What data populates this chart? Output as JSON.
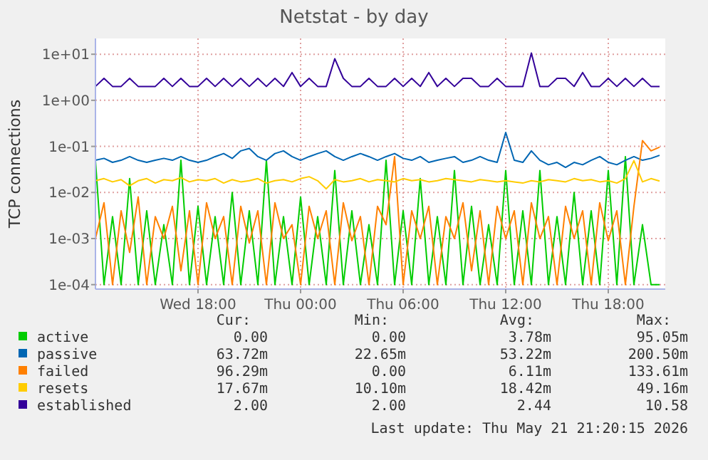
{
  "chart_data": {
    "type": "line",
    "title": "Netstat - by day",
    "ylabel": "TCP connections",
    "log": "y",
    "grid": true,
    "legend": "bottom",
    "line_style": "solid",
    "xlim": [
      "2026-05-20T12:00",
      "2026-05-21T21:20"
    ],
    "xticks": [
      {
        "value": "2026-05-20T18:00",
        "label": "Wed 18:00"
      },
      {
        "value": "2026-05-21T00:00",
        "label": "Thu 00:00"
      },
      {
        "value": "2026-05-21T06:00",
        "label": "Thu 06:00"
      },
      {
        "value": "2026-05-21T12:00",
        "label": "Thu 12:00"
      },
      {
        "value": "2026-05-21T18:00",
        "label": "Thu 18:00"
      }
    ],
    "ylim": [
      8e-05,
      22
    ],
    "yticks": [
      {
        "value": 0.0001,
        "label": "1e-04"
      },
      {
        "value": 0.001,
        "label": "1e-03"
      },
      {
        "value": 0.01,
        "label": "1e-02"
      },
      {
        "value": 0.1,
        "label": "1e-01"
      },
      {
        "value": 1,
        "label": "1e+00"
      },
      {
        "value": 10,
        "label": "1e+01"
      }
    ],
    "x": [
      "2026-05-20T12:00",
      "2026-05-20T12:30",
      "2026-05-20T13:00",
      "2026-05-20T13:30",
      "2026-05-20T14:00",
      "2026-05-20T14:30",
      "2026-05-20T15:00",
      "2026-05-20T15:30",
      "2026-05-20T16:00",
      "2026-05-20T16:30",
      "2026-05-20T17:00",
      "2026-05-20T17:30",
      "2026-05-20T18:00",
      "2026-05-20T18:30",
      "2026-05-20T19:00",
      "2026-05-20T19:30",
      "2026-05-20T20:00",
      "2026-05-20T20:30",
      "2026-05-20T21:00",
      "2026-05-20T21:30",
      "2026-05-20T22:00",
      "2026-05-20T22:30",
      "2026-05-20T23:00",
      "2026-05-20T23:30",
      "2026-05-21T00:00",
      "2026-05-21T00:30",
      "2026-05-21T01:00",
      "2026-05-21T01:30",
      "2026-05-21T02:00",
      "2026-05-21T02:30",
      "2026-05-21T03:00",
      "2026-05-21T03:30",
      "2026-05-21T04:00",
      "2026-05-21T04:30",
      "2026-05-21T05:00",
      "2026-05-21T05:30",
      "2026-05-21T06:00",
      "2026-05-21T06:30",
      "2026-05-21T07:00",
      "2026-05-21T07:30",
      "2026-05-21T08:00",
      "2026-05-21T08:30",
      "2026-05-21T09:00",
      "2026-05-21T09:30",
      "2026-05-21T10:00",
      "2026-05-21T10:30",
      "2026-05-21T11:00",
      "2026-05-21T11:30",
      "2026-05-21T12:00",
      "2026-05-21T12:30",
      "2026-05-21T13:00",
      "2026-05-21T13:30",
      "2026-05-21T14:00",
      "2026-05-21T14:30",
      "2026-05-21T15:00",
      "2026-05-21T15:30",
      "2026-05-21T16:00",
      "2026-05-21T16:30",
      "2026-05-21T17:00",
      "2026-05-21T17:30",
      "2026-05-21T18:00",
      "2026-05-21T18:30",
      "2026-05-21T19:00",
      "2026-05-21T19:30",
      "2026-05-21T20:00",
      "2026-05-21T20:30",
      "2026-05-21T21:00"
    ],
    "series": [
      {
        "name": "active",
        "color": "#00cc00",
        "values": [
          0.05,
          0.0001,
          0.003,
          0.0001,
          0.02,
          0.0001,
          0.004,
          0.0001,
          0.002,
          0.0001,
          0.05,
          0.0001,
          0.005,
          0.0001,
          0.003,
          0.0001,
          0.01,
          0.0001,
          0.004,
          0.0001,
          0.05,
          0.0001,
          0.003,
          0.0001,
          0.008,
          0.0001,
          0.003,
          0.0001,
          0.03,
          0.0001,
          0.004,
          0.0001,
          0.002,
          0.0001,
          0.05,
          0.0001,
          0.004,
          0.0001,
          0.02,
          0.0001,
          0.003,
          0.0001,
          0.03,
          0.0001,
          0.005,
          0.0001,
          0.002,
          0.0001,
          0.03,
          0.0001,
          0.004,
          0.0001,
          0.03,
          0.0001,
          0.003,
          0.0001,
          0.01,
          0.0001,
          0.004,
          0.0001,
          0.03,
          0.0001,
          0.06,
          0.0001,
          0.002,
          0.0001,
          0.0001
        ]
      },
      {
        "name": "passive",
        "color": "#0066b3",
        "values": [
          0.05,
          0.055,
          0.045,
          0.05,
          0.06,
          0.05,
          0.045,
          0.05,
          0.055,
          0.05,
          0.06,
          0.05,
          0.045,
          0.05,
          0.06,
          0.07,
          0.055,
          0.08,
          0.09,
          0.06,
          0.05,
          0.07,
          0.08,
          0.06,
          0.05,
          0.06,
          0.07,
          0.08,
          0.06,
          0.05,
          0.06,
          0.07,
          0.06,
          0.05,
          0.06,
          0.07,
          0.055,
          0.05,
          0.06,
          0.045,
          0.05,
          0.055,
          0.06,
          0.045,
          0.05,
          0.06,
          0.05,
          0.045,
          0.2005,
          0.05,
          0.045,
          0.08,
          0.05,
          0.04,
          0.045,
          0.035,
          0.045,
          0.04,
          0.05,
          0.06,
          0.045,
          0.04,
          0.05,
          0.06,
          0.05,
          0.055,
          0.064
        ]
      },
      {
        "name": "failed",
        "color": "#ff8000",
        "values": [
          0.001,
          0.006,
          0.0001,
          0.004,
          0.0005,
          0.008,
          0.0001,
          0.003,
          0.001,
          0.005,
          0.0002,
          0.004,
          0.0001,
          0.006,
          0.001,
          0.003,
          0.0001,
          0.005,
          0.0008,
          0.004,
          0.0001,
          0.006,
          0.001,
          0.002,
          0.0001,
          0.005,
          0.001,
          0.004,
          0.0001,
          0.006,
          0.0009,
          0.003,
          0.0001,
          0.005,
          0.002,
          0.06,
          0.0001,
          0.004,
          0.001,
          0.005,
          0.0001,
          0.003,
          0.001,
          0.006,
          0.0002,
          0.004,
          0.0001,
          0.005,
          0.001,
          0.004,
          0.0001,
          0.006,
          0.001,
          0.003,
          0.0001,
          0.005,
          0.001,
          0.004,
          0.0001,
          0.006,
          0.0009,
          0.004,
          0.0001,
          0.005,
          0.1336,
          0.08,
          0.09629
        ]
      },
      {
        "name": "resets",
        "color": "#ffcc00",
        "values": [
          0.018,
          0.02,
          0.017,
          0.019,
          0.014,
          0.018,
          0.02,
          0.016,
          0.019,
          0.018,
          0.021,
          0.017,
          0.019,
          0.018,
          0.02,
          0.016,
          0.019,
          0.017,
          0.018,
          0.02,
          0.016,
          0.018,
          0.019,
          0.017,
          0.02,
          0.022,
          0.018,
          0.012,
          0.019,
          0.017,
          0.018,
          0.02,
          0.017,
          0.019,
          0.018,
          0.017,
          0.02,
          0.018,
          0.019,
          0.017,
          0.018,
          0.02,
          0.019,
          0.018,
          0.017,
          0.019,
          0.018,
          0.017,
          0.018,
          0.017,
          0.016,
          0.018,
          0.017,
          0.019,
          0.018,
          0.017,
          0.02,
          0.018,
          0.019,
          0.017,
          0.018,
          0.016,
          0.02,
          0.049,
          0.017,
          0.02,
          0.01767
        ]
      },
      {
        "name": "established",
        "color": "#330099",
        "values": [
          2,
          3,
          2,
          2,
          3,
          2,
          2,
          2,
          3,
          2,
          3,
          2,
          2,
          3,
          2,
          3,
          2,
          3,
          2,
          3,
          2,
          3,
          2,
          4,
          2,
          3,
          2,
          2,
          8,
          3,
          2,
          2,
          3,
          2,
          2,
          3,
          2,
          3,
          2,
          4,
          2,
          3,
          2,
          3,
          3,
          2,
          2,
          3,
          2,
          2,
          2,
          10.58,
          2,
          2,
          3,
          3,
          2,
          4,
          2,
          2,
          3,
          2,
          3,
          2,
          3,
          2,
          2
        ]
      }
    ],
    "annotations": [
      "Cur:",
      "Min:",
      "Avg:",
      "Max:",
      "0.00",
      "0.00",
      "3.78m",
      "95.05m",
      "63.72m",
      "22.65m",
      "53.22m",
      "200.50m",
      "96.29m",
      "0.00",
      "6.11m",
      "133.61m",
      "17.67m",
      "10.10m",
      "18.42m",
      "49.16m",
      "2.00",
      "2.00",
      "2.44",
      "10.58",
      "Last update: Thu May 21 21:20:15 2026"
    ]
  }
}
